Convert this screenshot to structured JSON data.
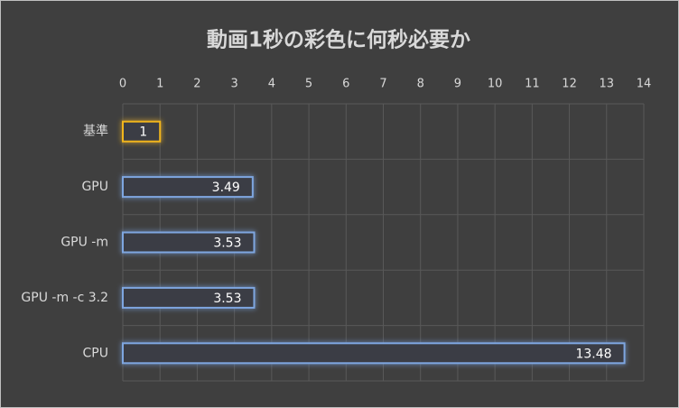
{
  "chart_data": {
    "type": "bar",
    "orientation": "horizontal",
    "title": "動画1秒の彩色に何秒必要か",
    "categories": [
      "基準",
      "GPU",
      "GPU -m",
      "GPU -m -c 3.2",
      "CPU"
    ],
    "values": [
      1,
      3.49,
      3.53,
      3.53,
      13.48
    ],
    "colors": [
      "#f2b61c",
      "#7ea6e0",
      "#7ea6e0",
      "#7ea6e0",
      "#7ea6e0"
    ],
    "xlim": [
      0,
      14
    ],
    "xticks": [
      0,
      1,
      2,
      3,
      4,
      5,
      6,
      7,
      8,
      9,
      10,
      11,
      12,
      13,
      14
    ],
    "grid": true
  }
}
